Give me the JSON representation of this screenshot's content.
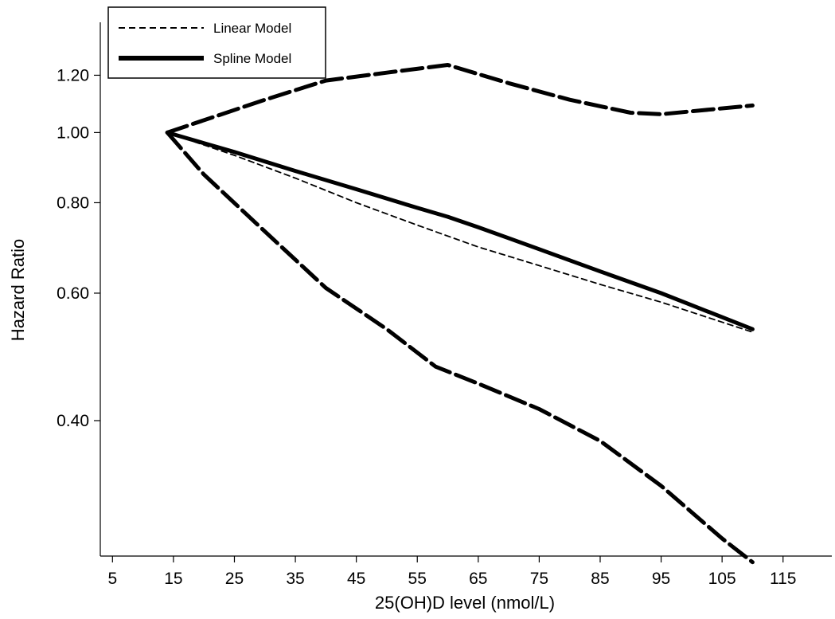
{
  "chart_data": {
    "type": "line",
    "xlabel": "25(OH)D level (nmol/L)",
    "ylabel": "Hazard Ratio",
    "y_scale": "log",
    "xlim": [
      3,
      123
    ],
    "ylim": [
      0.26,
      1.42
    ],
    "x_ticks": [
      5,
      15,
      25,
      35,
      45,
      55,
      65,
      75,
      85,
      95,
      105,
      115
    ],
    "y_ticks": [
      0.4,
      0.6,
      0.8,
      1.0,
      1.2
    ],
    "y_tick_labels": [
      "0.40",
      "0.60",
      "0.80",
      "1.00",
      "1.20"
    ],
    "legend_position": "top-left",
    "legend": [
      {
        "name": "Linear Model",
        "style": "dashed-thin"
      },
      {
        "name": "Spline Model",
        "style": "solid-thick"
      }
    ],
    "series": [
      {
        "name": "Linear Model",
        "style": "dashed-thin",
        "x": [
          14,
          25,
          35,
          45,
          55,
          65,
          75,
          85,
          95,
          110
        ],
        "y": [
          1.0,
          0.93,
          0.865,
          0.8,
          0.745,
          0.695,
          0.655,
          0.617,
          0.583,
          0.53
        ]
      },
      {
        "name": "Spline Model",
        "style": "solid-thick",
        "x": [
          14,
          25,
          35,
          45,
          55,
          60,
          65,
          75,
          85,
          95,
          110
        ],
        "y": [
          1.0,
          0.94,
          0.885,
          0.835,
          0.787,
          0.765,
          0.74,
          0.69,
          0.643,
          0.6,
          0.535
        ]
      },
      {
        "style": "upper-ci",
        "x": [
          14,
          20,
          30,
          40,
          50,
          60,
          70,
          80,
          90,
          95,
          100,
          110
        ],
        "y": [
          1.0,
          1.04,
          1.11,
          1.18,
          1.21,
          1.24,
          1.17,
          1.11,
          1.065,
          1.06,
          1.07,
          1.09
        ]
      },
      {
        "style": "lower-ci",
        "x": [
          14,
          20,
          30,
          40,
          50,
          58,
          65,
          75,
          85,
          95,
          105,
          110
        ],
        "y": [
          1.0,
          0.875,
          0.73,
          0.61,
          0.535,
          0.475,
          0.45,
          0.415,
          0.375,
          0.325,
          0.275,
          0.255
        ]
      }
    ]
  }
}
